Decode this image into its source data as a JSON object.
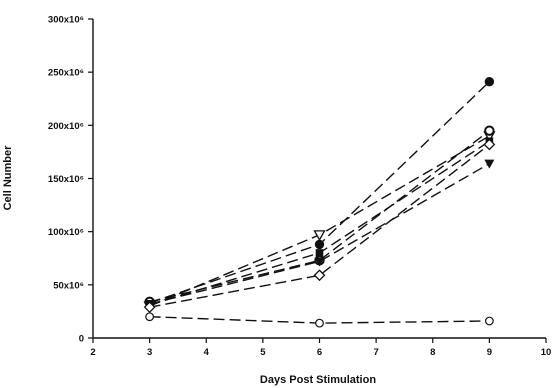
{
  "chart_data": {
    "type": "line",
    "xlabel": "Days Post Stimulation",
    "ylabel": "Cell Number",
    "xlim": [
      2,
      10
    ],
    "ylim": [
      0,
      300000000
    ],
    "x_ticks": [
      {
        "value": 2,
        "label": "2"
      },
      {
        "value": 3,
        "label": "3"
      },
      {
        "value": 4,
        "label": "4"
      },
      {
        "value": 5,
        "label": "5"
      },
      {
        "value": 6,
        "label": "6"
      },
      {
        "value": 7,
        "label": "7"
      },
      {
        "value": 8,
        "label": "8"
      },
      {
        "value": 9,
        "label": "9"
      },
      {
        "value": 10,
        "label": "10"
      }
    ],
    "y_ticks": [
      {
        "value": 0,
        "label": "0"
      },
      {
        "value": 50000000,
        "label": "50x10⁶"
      },
      {
        "value": 100000000,
        "label": "100x10⁶"
      },
      {
        "value": 150000000,
        "label": "150x10⁶"
      },
      {
        "value": 200000000,
        "label": "200x10⁶"
      },
      {
        "value": 250000000,
        "label": "250x10⁶"
      },
      {
        "value": 300000000,
        "label": "300x10⁶"
      }
    ],
    "x": [
      3,
      6,
      9
    ],
    "series": [
      {
        "marker": "circle-filled",
        "values": [
          33000000,
          88000000,
          241000000
        ]
      },
      {
        "marker": "triangle-down-open",
        "values": [
          30000000,
          97000000,
          190000000
        ]
      },
      {
        "marker": "circle-open-bold",
        "values": [
          34000000,
          73000000,
          195000000
        ]
      },
      {
        "marker": "square-filled",
        "values": [
          31000000,
          80000000,
          185000000
        ]
      },
      {
        "marker": "triangle-down-filled",
        "values": [
          32000000,
          72000000,
          164000000
        ]
      },
      {
        "marker": "diamond-open",
        "values": [
          29000000,
          59000000,
          182000000
        ]
      },
      {
        "marker": "circle-open",
        "values": [
          20000000,
          14000000,
          16000000
        ]
      }
    ],
    "grid": false,
    "legend": "none",
    "line_style": "dashed",
    "line_color": "#111111"
  }
}
